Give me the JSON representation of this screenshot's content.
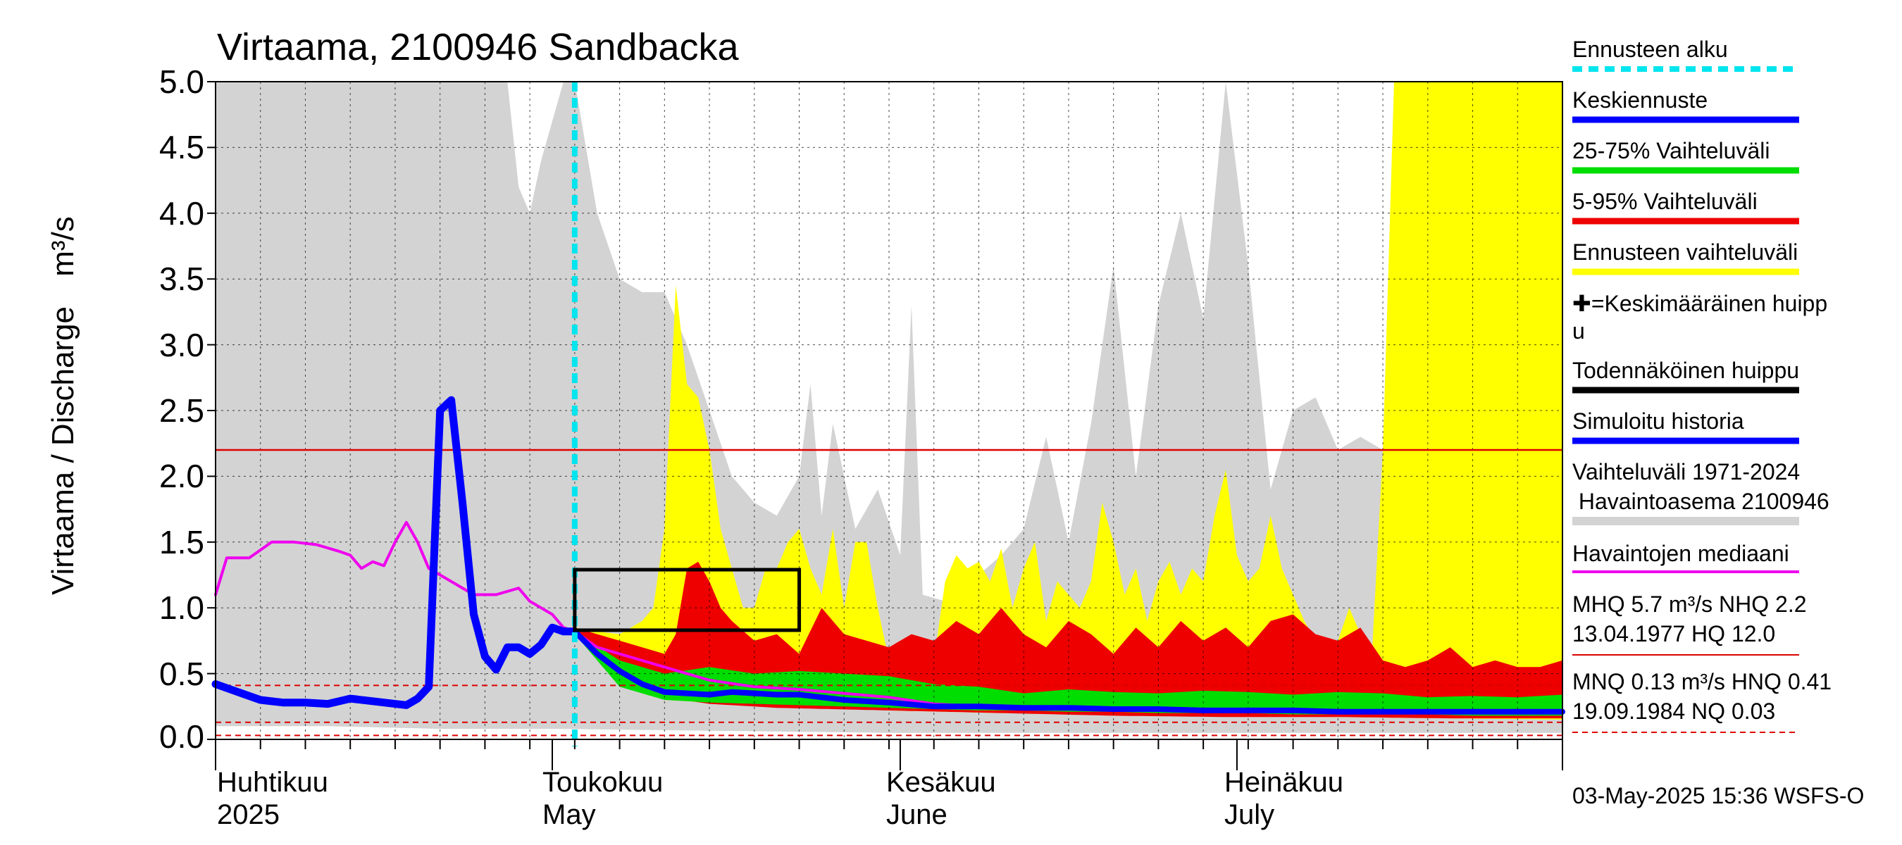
{
  "title": "Virtaama, 2100946 Sandbacka",
  "ylabel": "Virtaama / Discharge",
  "yunit": "m³/s",
  "yticks": [
    "5.0",
    "4.5",
    "4.0",
    "3.5",
    "3.0",
    "2.5",
    "2.0",
    "1.5",
    "1.0",
    "0.5",
    "0.0"
  ],
  "months": [
    {
      "line1": "Huhtikuu",
      "line2": "2025"
    },
    {
      "line1": "Toukokuu",
      "line2": "May"
    },
    {
      "line1": "Kesäkuu",
      "line2": "June"
    },
    {
      "line1": "Heinäkuu",
      "line2": "July"
    }
  ],
  "legend": {
    "forecast_start": "Ennusteen alku",
    "mean_forecast": "Keskiennuste",
    "range_25_75": "25-75% Vaihteluväli",
    "range_5_95": "5-95% Vaihteluväli",
    "forecast_range": "Ennusteen vaihteluväli",
    "mean_peak_mark": "✚",
    "mean_peak": "=Keskimääräinen huipp",
    "mean_peak_wrap": "u",
    "probable_peak": "Todennäköinen huippu",
    "simulated_history": "Simuloitu historia",
    "variation_1": "Vaihteluväli 1971-2024",
    "variation_2": " Havaintoasema 2100946",
    "median": "Havaintojen mediaani",
    "mhq_1": "MHQ  5.7 m³/s NHQ  2.2",
    "mhq_2": "13.04.1977 HQ 12.0",
    "mnq_1": "MNQ 0.13 m³/s HNQ 0.41",
    "mnq_2": "19.09.1984 NQ 0.03"
  },
  "footer": "03-May-2025 15:36 WSFS-O",
  "colors": {
    "forecast_start": "#00e5ee",
    "mean_forecast": "#0000ff",
    "range_25_75": "#00dd00",
    "range_5_95": "#ee0000",
    "forecast_range": "#ffff00",
    "probable_peak": "#000000",
    "simulated_history": "#0000ff",
    "variation": "#d3d3d3",
    "median": "#ee00ee",
    "mhq_line": "#dd0000",
    "mnq_line": "#dd0000"
  },
  "chart_data": {
    "type": "area",
    "title": "Virtaama, 2100946 Sandbacka",
    "ylabel": "Virtaama / Discharge (m³/s)",
    "ylim": [
      0,
      5
    ],
    "xlim_days": [
      0,
      120
    ],
    "x_unit": "days since 2025-04-01",
    "forecast_start_day": 32,
    "reference_lines": {
      "NHQ": 2.2,
      "HNQ": 0.41,
      "MNQ": 0.13,
      "NQ": 0.03
    },
    "probable_peak_box": {
      "x0_day": 32,
      "x1_day": 52,
      "y0": 0.83,
      "y1": 1.29
    },
    "series": [
      {
        "name": "Vaihteluväli 1971-2024 upper",
        "x": [
          0,
          4,
          8,
          12,
          16,
          20,
          24,
          26,
          27,
          28,
          29,
          31,
          32,
          34,
          36,
          38,
          40,
          42,
          44,
          46,
          48,
          50,
          52,
          53,
          54,
          55,
          57,
          59,
          61,
          62,
          63,
          65,
          67,
          68,
          70,
          72,
          74,
          76,
          78,
          80,
          82,
          84,
          86,
          88,
          90,
          92,
          94,
          96,
          98,
          100,
          102,
          104,
          106,
          108,
          110,
          112,
          114,
          116,
          118,
          120
        ],
        "y": [
          5.0,
          5.0,
          5.0,
          5.0,
          5.0,
          5.0,
          5.0,
          5.0,
          4.2,
          4.0,
          4.4,
          5.0,
          5.0,
          4.0,
          3.5,
          3.4,
          3.4,
          3.0,
          2.5,
          2.0,
          1.8,
          1.7,
          2.0,
          2.7,
          1.7,
          2.4,
          1.6,
          1.9,
          1.4,
          3.3,
          1.1,
          1.05,
          1.1,
          1.25,
          1.4,
          1.6,
          2.3,
          1.5,
          2.4,
          3.6,
          2.0,
          3.3,
          4.0,
          3.2,
          5.0,
          3.6,
          1.9,
          2.5,
          2.6,
          2.2,
          2.3,
          2.2,
          2.2,
          1.4,
          2.1,
          1.5,
          1.2,
          1.2,
          3.0,
          5.0
        ]
      },
      {
        "name": "Vaihteluväli 1971-2024 lower",
        "x": [
          0,
          10,
          20,
          30,
          40,
          50,
          60,
          70,
          80,
          90,
          100,
          110,
          120
        ],
        "y": [
          0.1,
          0.1,
          0.08,
          0.08,
          0.07,
          0.06,
          0.05,
          0.05,
          0.05,
          0.05,
          0.05,
          0.05,
          0.05
        ]
      },
      {
        "name": "Ennusteen vaihteluväli upper",
        "x": [
          32,
          34,
          36,
          38,
          39,
          40,
          41,
          42,
          43,
          44,
          45,
          46,
          47,
          48,
          49,
          50,
          51,
          52,
          53,
          54,
          55,
          56,
          57,
          58,
          59,
          60,
          61,
          62,
          63,
          64,
          65,
          66,
          67,
          68,
          69,
          70,
          71,
          72,
          73,
          74,
          75,
          76,
          77,
          78,
          79,
          80,
          81,
          82,
          83,
          84,
          85,
          86,
          87,
          88,
          89,
          90,
          91,
          92,
          93,
          94,
          95,
          96,
          97,
          98,
          99,
          100,
          101,
          102,
          103,
          104,
          105,
          106,
          107,
          108,
          109,
          110,
          111,
          112,
          113,
          114,
          115,
          116,
          117,
          118,
          119,
          120
        ],
        "y": [
          0.85,
          0.82,
          0.8,
          0.9,
          1.0,
          1.6,
          3.45,
          2.7,
          2.6,
          2.2,
          1.6,
          1.3,
          1.0,
          1.0,
          1.3,
          1.3,
          1.5,
          1.6,
          1.3,
          1.1,
          1.6,
          1.0,
          1.5,
          1.5,
          1.0,
          0.6,
          0.5,
          0.45,
          0.5,
          0.6,
          1.2,
          1.4,
          1.3,
          1.35,
          1.2,
          1.45,
          1.0,
          1.3,
          1.5,
          0.9,
          1.2,
          1.1,
          1.0,
          1.2,
          1.8,
          1.5,
          1.1,
          1.3,
          0.9,
          1.2,
          1.35,
          1.1,
          1.3,
          1.2,
          1.7,
          2.05,
          1.4,
          1.2,
          1.3,
          1.7,
          1.3,
          1.1,
          0.9,
          0.75,
          0.6,
          0.75,
          1.0,
          0.8,
          0.6,
          2.2,
          5.0,
          5.0,
          5.0,
          5.0,
          5.0,
          5.0,
          5.0,
          5.0,
          5.0,
          5.0,
          5.0,
          5.0,
          5.0,
          5.0,
          5.0,
          5.0
        ]
      },
      {
        "name": "Ennusteen vaihteluväli lower",
        "x": [
          32,
          40,
          50,
          60,
          70,
          80,
          90,
          100,
          110,
          120
        ],
        "y": [
          0.8,
          0.3,
          0.25,
          0.22,
          0.2,
          0.19,
          0.18,
          0.17,
          0.16,
          0.15
        ]
      },
      {
        "name": "5-95% Vaihteluväli upper",
        "x": [
          32,
          34,
          36,
          38,
          40,
          41,
          42,
          43,
          44,
          45,
          46,
          48,
          50,
          52,
          54,
          56,
          58,
          60,
          62,
          64,
          66,
          68,
          70,
          72,
          74,
          76,
          78,
          80,
          82,
          84,
          86,
          88,
          90,
          92,
          94,
          96,
          98,
          100,
          102,
          104,
          106,
          108,
          110,
          112,
          114,
          116,
          118,
          120
        ],
        "y": [
          0.85,
          0.8,
          0.75,
          0.7,
          0.65,
          0.8,
          1.3,
          1.35,
          1.2,
          1.0,
          0.9,
          0.75,
          0.8,
          0.65,
          1.0,
          0.8,
          0.75,
          0.7,
          0.8,
          0.75,
          0.9,
          0.8,
          1.0,
          0.8,
          0.7,
          0.9,
          0.8,
          0.65,
          0.85,
          0.7,
          0.9,
          0.75,
          0.85,
          0.7,
          0.9,
          0.95,
          0.8,
          0.75,
          0.85,
          0.6,
          0.55,
          0.6,
          0.7,
          0.55,
          0.6,
          0.55,
          0.55,
          0.6
        ]
      },
      {
        "name": "5-95% Vaihteluväli lower",
        "x": [
          32,
          36,
          40,
          44,
          50,
          60,
          70,
          80,
          90,
          100,
          110,
          120
        ],
        "y": [
          0.8,
          0.45,
          0.32,
          0.27,
          0.24,
          0.22,
          0.2,
          0.18,
          0.17,
          0.17,
          0.16,
          0.16
        ]
      },
      {
        "name": "25-75% Vaihteluväli upper",
        "x": [
          32,
          36,
          40,
          44,
          48,
          52,
          56,
          60,
          64,
          68,
          72,
          76,
          80,
          84,
          88,
          92,
          96,
          100,
          104,
          108,
          112,
          116,
          120
        ],
        "y": [
          0.82,
          0.6,
          0.5,
          0.55,
          0.5,
          0.52,
          0.5,
          0.48,
          0.42,
          0.4,
          0.35,
          0.38,
          0.36,
          0.35,
          0.37,
          0.36,
          0.34,
          0.36,
          0.35,
          0.32,
          0.33,
          0.32,
          0.34
        ]
      },
      {
        "name": "25-75% Vaihteluväli lower",
        "x": [
          32,
          36,
          40,
          44,
          48,
          52,
          56,
          60,
          64,
          68,
          72,
          76,
          80,
          84,
          88,
          92,
          96,
          100,
          104,
          108,
          112,
          116,
          120
        ],
        "y": [
          0.8,
          0.4,
          0.3,
          0.28,
          0.27,
          0.26,
          0.25,
          0.24,
          0.23,
          0.22,
          0.22,
          0.21,
          0.21,
          0.2,
          0.2,
          0.2,
          0.19,
          0.19,
          0.19,
          0.19,
          0.18,
          0.18,
          0.18
        ]
      },
      {
        "name": "Keskiennuste",
        "x": [
          32,
          34,
          36,
          38,
          40,
          42,
          44,
          46,
          48,
          50,
          52,
          56,
          60,
          64,
          68,
          72,
          76,
          80,
          84,
          88,
          92,
          96,
          100,
          104,
          108,
          112,
          116,
          120
        ],
        "y": [
          0.82,
          0.65,
          0.52,
          0.42,
          0.36,
          0.35,
          0.34,
          0.36,
          0.35,
          0.34,
          0.34,
          0.3,
          0.28,
          0.25,
          0.25,
          0.24,
          0.24,
          0.23,
          0.23,
          0.22,
          0.22,
          0.22,
          0.21,
          0.21,
          0.21,
          0.21,
          0.21,
          0.21
        ]
      },
      {
        "name": "Simuloitu historia",
        "x": [
          0,
          2,
          4,
          6,
          8,
          10,
          12,
          14,
          16,
          17,
          18,
          19,
          20,
          21,
          22,
          23,
          24,
          25,
          26,
          27,
          28,
          29,
          30,
          31,
          32
        ],
        "y": [
          0.42,
          0.36,
          0.3,
          0.28,
          0.28,
          0.27,
          0.31,
          0.29,
          0.27,
          0.26,
          0.31,
          0.4,
          2.5,
          2.58,
          1.8,
          0.95,
          0.63,
          0.53,
          0.7,
          0.7,
          0.65,
          0.72,
          0.85,
          0.82,
          0.82
        ]
      },
      {
        "name": "Havaintojen mediaani",
        "x": [
          0,
          1,
          3,
          5,
          7,
          9,
          11,
          12,
          13,
          14,
          15,
          16,
          17,
          18,
          19,
          20,
          21,
          23,
          25,
          27,
          28,
          29,
          30,
          31,
          32,
          34,
          36,
          38,
          40,
          44,
          48,
          52,
          56,
          60,
          64,
          68,
          72,
          76,
          80,
          84,
          88,
          92,
          96,
          100,
          104,
          108,
          112,
          116,
          120
        ],
        "y": [
          1.1,
          1.38,
          1.38,
          1.5,
          1.5,
          1.48,
          1.43,
          1.4,
          1.3,
          1.35,
          1.32,
          1.5,
          1.65,
          1.5,
          1.3,
          1.25,
          1.2,
          1.1,
          1.1,
          1.15,
          1.05,
          1.0,
          0.95,
          0.85,
          0.82,
          0.7,
          0.65,
          0.6,
          0.55,
          0.45,
          0.4,
          0.38,
          0.35,
          0.32,
          0.27,
          0.25,
          0.24,
          0.24,
          0.23,
          0.23,
          0.23,
          0.22,
          0.22,
          0.22,
          0.21,
          0.21,
          0.21,
          0.21,
          0.21
        ]
      }
    ]
  }
}
